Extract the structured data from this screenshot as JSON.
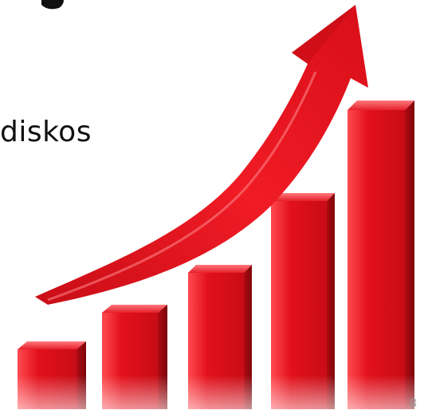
{
  "slide": {
    "body_text": "diskos",
    "page_number": "8"
  },
  "graphic": {
    "name": "rising-bar-chart-with-arrow",
    "bar_count": 5,
    "bar_relative_heights": [
      0.19,
      0.33,
      0.46,
      0.63,
      1.0
    ],
    "color_main": "#e3101b",
    "color_dark": "#9a0a10",
    "color_light": "#ff5a5f"
  }
}
